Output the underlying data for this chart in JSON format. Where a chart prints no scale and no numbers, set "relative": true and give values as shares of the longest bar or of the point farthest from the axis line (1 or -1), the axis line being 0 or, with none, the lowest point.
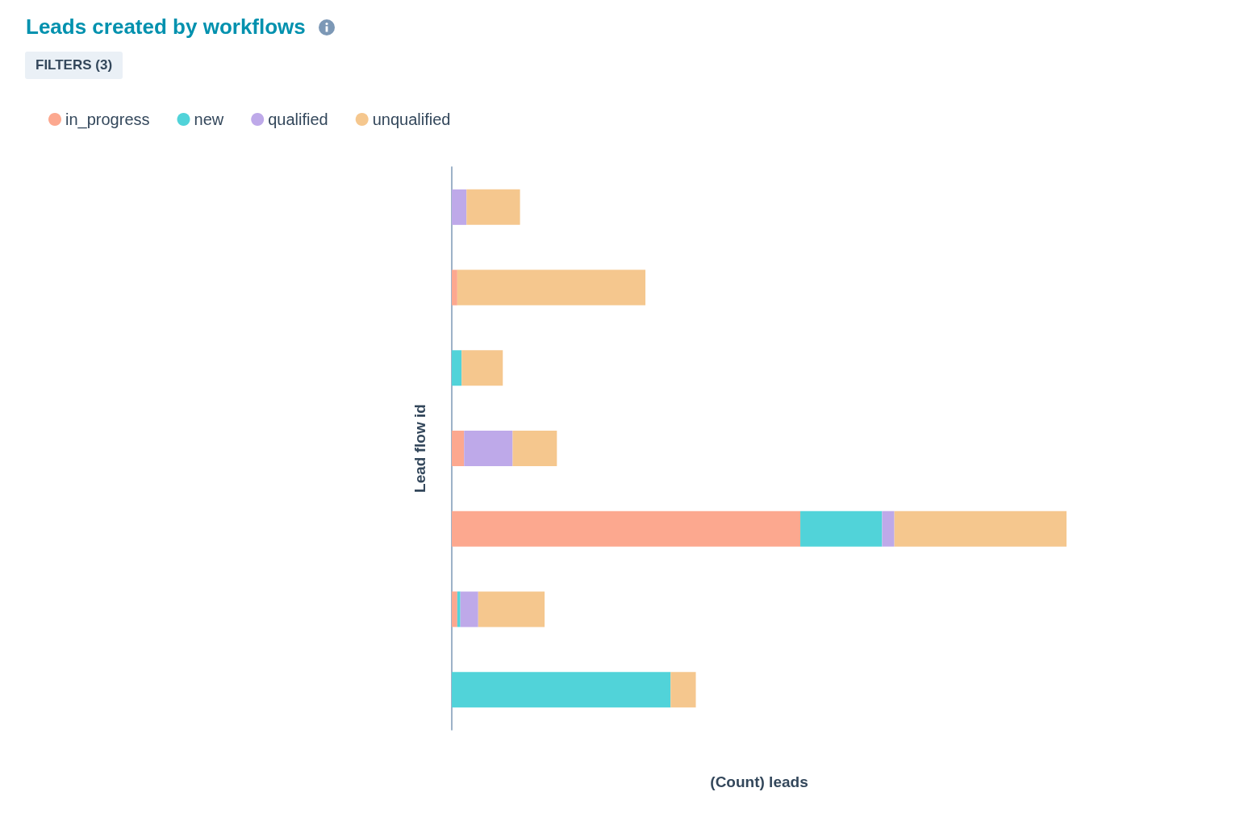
{
  "chart_data": {
    "type": "bar",
    "orientation": "horizontal",
    "stacked": true,
    "relative": true,
    "title": "Leads created by workflows",
    "xlabel": "(Count) leads",
    "ylabel": "Lead flow id",
    "annotations": [
      "FILTERS (3)"
    ],
    "legend": "top left",
    "categories": [
      null,
      null,
      null,
      null,
      null,
      null,
      null
    ],
    "series": [
      {
        "name": "in_progress",
        "color": "#fca88f",
        "values": [
          0,
          0.009,
          0,
          0.02,
          0.567,
          0.009,
          0
        ]
      },
      {
        "name": "new",
        "color": "#51d3d9",
        "values": [
          0,
          0,
          0.016,
          0,
          0.133,
          0.005,
          0.356
        ]
      },
      {
        "name": "qualified",
        "color": "#bea9e9",
        "values": [
          0.024,
          0,
          0,
          0.079,
          0.02,
          0.029,
          0
        ]
      },
      {
        "name": "unqualified",
        "color": "#f5c78e",
        "values": [
          0.087,
          0.306,
          0.067,
          0.072,
          0.28,
          0.108,
          0.041
        ]
      }
    ]
  }
}
